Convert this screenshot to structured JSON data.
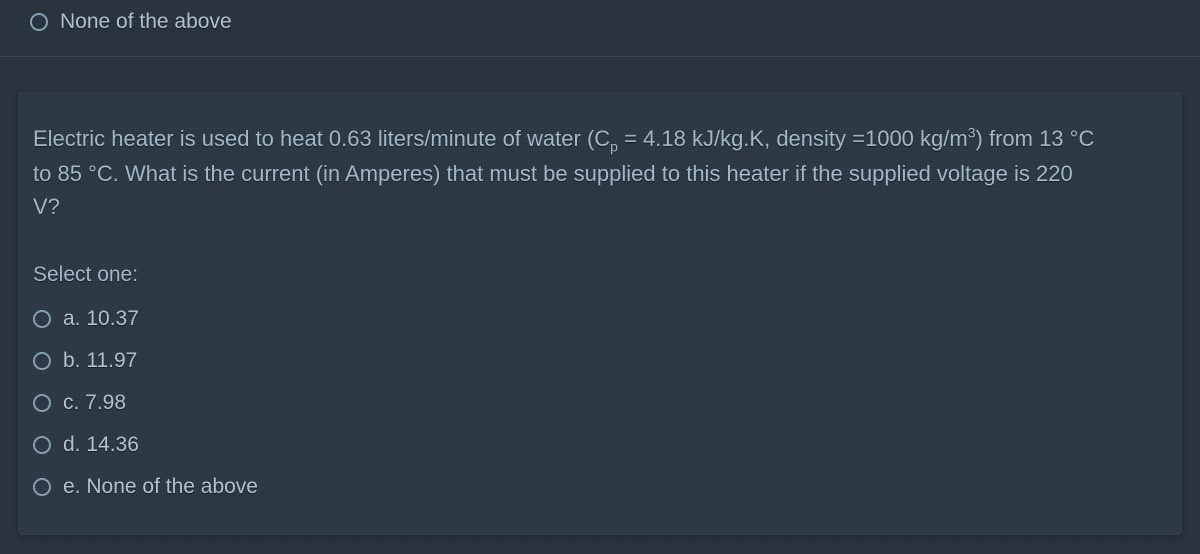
{
  "colors": {
    "page_bg": "#2a3540",
    "block_bg": "#2e3a45",
    "text": "#a8bfcf",
    "label": "#b8cad6",
    "radio_border": "#8aa5b8"
  },
  "typography": {
    "font_family": "Arial, sans-serif",
    "question_fontsize": 22,
    "option_fontsize": 21
  },
  "top_option": {
    "label": "None of the above"
  },
  "question": {
    "line1_pre": "Electric heater is used to heat 0.63 liters/minute of water (C",
    "line1_sub": "p",
    "line1_mid": " = 4.18 kJ/kg.K, density =1000 kg/m",
    "line1_sup": "3",
    "line1_post": ") from 13 °C",
    "line2": "to 85 °C. What is the current (in Amperes) that must be supplied to this heater if the supplied voltage is 220",
    "line3": "V?",
    "select_label": "Select one:"
  },
  "options": [
    {
      "label": "a. 10.37"
    },
    {
      "label": "b. 11.97"
    },
    {
      "label": "c. 7.98"
    },
    {
      "label": "d. 14.36"
    },
    {
      "label": "e. None of the above"
    }
  ]
}
